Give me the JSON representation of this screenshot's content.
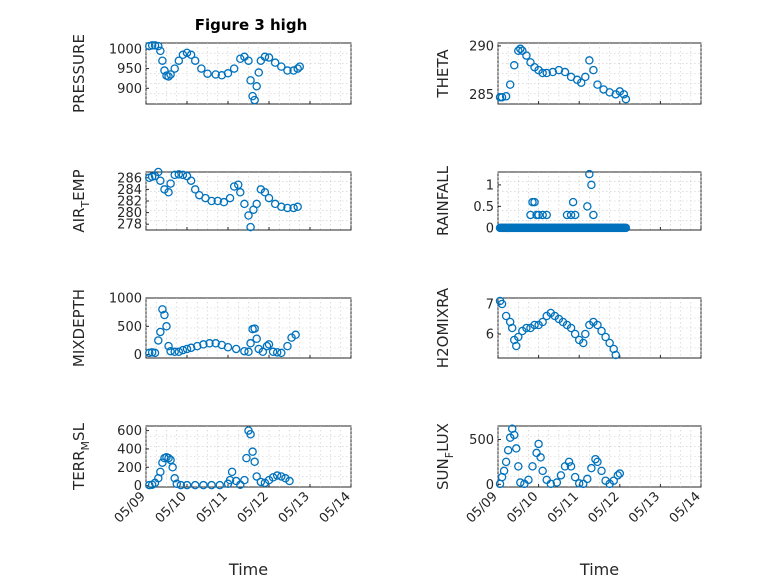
{
  "title": "Figure 3 high",
  "colors": {
    "marker": "#0072BD",
    "axis": "#262626"
  },
  "x_tick_labels": [
    "05/09",
    "05/10",
    "05/11",
    "05/12",
    "05/13",
    "05/14"
  ],
  "x_label": "Time",
  "chart_data": [
    {
      "type": "scatter",
      "id": "pressure",
      "ylabel": "PRESSURE",
      "ylim": [
        860,
        1015
      ],
      "yticks": [
        900,
        950,
        1000
      ],
      "x_domain": [
        0,
        5
      ],
      "grid": true,
      "points": [
        [
          0.08,
          1007
        ],
        [
          0.15,
          1009
        ],
        [
          0.22,
          1009
        ],
        [
          0.3,
          1007
        ],
        [
          0.35,
          995
        ],
        [
          0.4,
          970
        ],
        [
          0.45,
          945
        ],
        [
          0.5,
          932
        ],
        [
          0.55,
          930
        ],
        [
          0.6,
          935
        ],
        [
          0.7,
          950
        ],
        [
          0.8,
          970
        ],
        [
          0.9,
          985
        ],
        [
          1.0,
          990
        ],
        [
          1.1,
          985
        ],
        [
          1.2,
          970
        ],
        [
          1.35,
          950
        ],
        [
          1.5,
          937
        ],
        [
          1.7,
          935
        ],
        [
          1.85,
          933
        ],
        [
          2.0,
          938
        ],
        [
          2.15,
          950
        ],
        [
          2.3,
          975
        ],
        [
          2.4,
          980
        ],
        [
          2.5,
          970
        ],
        [
          2.55,
          920
        ],
        [
          2.6,
          880
        ],
        [
          2.65,
          870
        ],
        [
          2.7,
          905
        ],
        [
          2.75,
          940
        ],
        [
          2.8,
          970
        ],
        [
          2.9,
          980
        ],
        [
          3.0,
          978
        ],
        [
          3.15,
          965
        ],
        [
          3.3,
          955
        ],
        [
          3.45,
          945
        ],
        [
          3.6,
          945
        ],
        [
          3.7,
          950
        ],
        [
          3.75,
          955
        ]
      ]
    },
    {
      "type": "scatter",
      "id": "theta",
      "ylabel": "THETA",
      "ylim": [
        284,
        290.3
      ],
      "yticks": [
        285,
        290
      ],
      "x_domain": [
        0,
        5
      ],
      "grid": true,
      "points": [
        [
          0.05,
          284.7
        ],
        [
          0.1,
          284.7
        ],
        [
          0.2,
          284.8
        ],
        [
          0.3,
          286
        ],
        [
          0.4,
          288
        ],
        [
          0.5,
          289.5
        ],
        [
          0.55,
          289.7
        ],
        [
          0.6,
          289.5
        ],
        [
          0.7,
          289
        ],
        [
          0.8,
          288.3
        ],
        [
          0.9,
          287.8
        ],
        [
          1.0,
          287.5
        ],
        [
          1.1,
          287.2
        ],
        [
          1.2,
          287.2
        ],
        [
          1.35,
          287.3
        ],
        [
          1.5,
          287.5
        ],
        [
          1.65,
          287.3
        ],
        [
          1.8,
          286.8
        ],
        [
          1.95,
          286.5
        ],
        [
          2.05,
          286.2
        ],
        [
          2.15,
          286.8
        ],
        [
          2.25,
          288.5
        ],
        [
          2.35,
          287.5
        ],
        [
          2.45,
          286
        ],
        [
          2.6,
          285.5
        ],
        [
          2.75,
          285.2
        ],
        [
          2.9,
          285
        ],
        [
          3.0,
          285.3
        ],
        [
          3.1,
          285
        ],
        [
          3.15,
          284.5
        ]
      ]
    },
    {
      "type": "scatter",
      "id": "air_temp",
      "ylabel": "AIR_TEMP",
      "ylim": [
        277,
        287
      ],
      "yticks": [
        278,
        280,
        282,
        284,
        286
      ],
      "x_domain": [
        0,
        5
      ],
      "grid": true,
      "points": [
        [
          0.08,
          286
        ],
        [
          0.15,
          286.2
        ],
        [
          0.22,
          286.3
        ],
        [
          0.3,
          287
        ],
        [
          0.35,
          285.5
        ],
        [
          0.45,
          284
        ],
        [
          0.55,
          283.5
        ],
        [
          0.6,
          285
        ],
        [
          0.7,
          286.5
        ],
        [
          0.8,
          286.6
        ],
        [
          0.9,
          286.5
        ],
        [
          1.0,
          286.3
        ],
        [
          1.1,
          285.5
        ],
        [
          1.2,
          284
        ],
        [
          1.3,
          283
        ],
        [
          1.45,
          282.5
        ],
        [
          1.6,
          282
        ],
        [
          1.75,
          282
        ],
        [
          1.9,
          281.8
        ],
        [
          2.05,
          282.5
        ],
        [
          2.15,
          284.5
        ],
        [
          2.25,
          284.8
        ],
        [
          2.3,
          283.5
        ],
        [
          2.4,
          281.5
        ],
        [
          2.5,
          279.5
        ],
        [
          2.55,
          277.5
        ],
        [
          2.62,
          280.5
        ],
        [
          2.7,
          281.5
        ],
        [
          2.8,
          284
        ],
        [
          2.9,
          283.5
        ],
        [
          3.0,
          282.5
        ],
        [
          3.15,
          281.5
        ],
        [
          3.3,
          281
        ],
        [
          3.45,
          280.8
        ],
        [
          3.6,
          280.8
        ],
        [
          3.7,
          281
        ]
      ]
    },
    {
      "type": "scatter",
      "id": "rainfall",
      "ylabel": "RAINFALL",
      "ylim": [
        -0.05,
        1.3
      ],
      "yticks": [
        0,
        0.5,
        1
      ],
      "x_domain": [
        0,
        5
      ],
      "grid": true,
      "zero_run": [
        0.05,
        3.15,
        0.025
      ],
      "points": [
        [
          0.8,
          0.3
        ],
        [
          0.85,
          0.6
        ],
        [
          0.9,
          0.6
        ],
        [
          0.95,
          0.3
        ],
        [
          1.0,
          0.3
        ],
        [
          1.1,
          0.3
        ],
        [
          1.2,
          0.3
        ],
        [
          1.7,
          0.3
        ],
        [
          1.8,
          0.3
        ],
        [
          1.85,
          0.6
        ],
        [
          1.9,
          0.3
        ],
        [
          2.2,
          0.5
        ],
        [
          2.25,
          1.25
        ],
        [
          2.3,
          1.0
        ],
        [
          2.35,
          0.3
        ]
      ]
    },
    {
      "type": "scatter",
      "id": "mixdepth",
      "ylabel": "MIXDEPTH",
      "ylim": [
        -60,
        1000
      ],
      "yticks": [
        0,
        500,
        1000
      ],
      "x_domain": [
        0,
        5
      ],
      "grid": true,
      "points": [
        [
          0.08,
          30
        ],
        [
          0.15,
          40
        ],
        [
          0.22,
          30
        ],
        [
          0.3,
          250
        ],
        [
          0.35,
          400
        ],
        [
          0.4,
          800
        ],
        [
          0.45,
          700
        ],
        [
          0.5,
          500
        ],
        [
          0.55,
          150
        ],
        [
          0.6,
          60
        ],
        [
          0.7,
          50
        ],
        [
          0.8,
          50
        ],
        [
          0.9,
          80
        ],
        [
          1.0,
          100
        ],
        [
          1.1,
          120
        ],
        [
          1.25,
          150
        ],
        [
          1.4,
          180
        ],
        [
          1.55,
          200
        ],
        [
          1.7,
          200
        ],
        [
          1.85,
          170
        ],
        [
          2.0,
          130
        ],
        [
          2.2,
          100
        ],
        [
          2.4,
          60
        ],
        [
          2.5,
          50
        ],
        [
          2.55,
          200
        ],
        [
          2.6,
          450
        ],
        [
          2.65,
          460
        ],
        [
          2.7,
          280
        ],
        [
          2.75,
          100
        ],
        [
          2.85,
          50
        ],
        [
          2.95,
          150
        ],
        [
          3.0,
          180
        ],
        [
          3.1,
          50
        ],
        [
          3.2,
          40
        ],
        [
          3.3,
          30
        ],
        [
          3.45,
          150
        ],
        [
          3.55,
          300
        ],
        [
          3.65,
          350
        ]
      ]
    },
    {
      "type": "scatter",
      "id": "h2omixra",
      "ylabel": "H2OMIXRA",
      "ylim": [
        5.2,
        7.2
      ],
      "yticks": [
        6,
        7
      ],
      "x_domain": [
        0,
        5
      ],
      "grid": true,
      "points": [
        [
          0.05,
          7.1
        ],
        [
          0.1,
          7.0
        ],
        [
          0.2,
          6.6
        ],
        [
          0.3,
          6.4
        ],
        [
          0.35,
          6.2
        ],
        [
          0.4,
          5.8
        ],
        [
          0.45,
          5.6
        ],
        [
          0.5,
          5.9
        ],
        [
          0.6,
          6.1
        ],
        [
          0.7,
          6.2
        ],
        [
          0.8,
          6.2
        ],
        [
          0.9,
          6.3
        ],
        [
          1.0,
          6.3
        ],
        [
          1.1,
          6.4
        ],
        [
          1.2,
          6.6
        ],
        [
          1.3,
          6.7
        ],
        [
          1.4,
          6.6
        ],
        [
          1.5,
          6.5
        ],
        [
          1.6,
          6.4
        ],
        [
          1.7,
          6.3
        ],
        [
          1.8,
          6.2
        ],
        [
          1.9,
          6.0
        ],
        [
          2.0,
          5.8
        ],
        [
          2.1,
          5.7
        ],
        [
          2.15,
          6.0
        ],
        [
          2.25,
          6.3
        ],
        [
          2.35,
          6.4
        ],
        [
          2.45,
          6.3
        ],
        [
          2.55,
          6.1
        ],
        [
          2.65,
          5.9
        ],
        [
          2.75,
          5.7
        ],
        [
          2.85,
          5.5
        ],
        [
          2.9,
          5.3
        ]
      ]
    },
    {
      "type": "scatter",
      "id": "terr_msl",
      "ylabel": "TERR_MSL",
      "ylim": [
        -15,
        650
      ],
      "yticks": [
        0,
        200,
        400,
        600
      ],
      "x_domain": [
        0,
        5
      ],
      "grid": true,
      "points": [
        [
          0.08,
          5
        ],
        [
          0.15,
          10
        ],
        [
          0.22,
          30
        ],
        [
          0.3,
          80
        ],
        [
          0.35,
          150
        ],
        [
          0.4,
          250
        ],
        [
          0.45,
          300
        ],
        [
          0.5,
          310
        ],
        [
          0.55,
          300
        ],
        [
          0.6,
          280
        ],
        [
          0.65,
          200
        ],
        [
          0.7,
          80
        ],
        [
          0.75,
          20
        ],
        [
          0.85,
          5
        ],
        [
          1.0,
          5
        ],
        [
          1.2,
          5
        ],
        [
          1.4,
          5
        ],
        [
          1.6,
          5
        ],
        [
          1.8,
          5
        ],
        [
          2.0,
          20
        ],
        [
          2.05,
          60
        ],
        [
          2.1,
          150
        ],
        [
          2.2,
          50
        ],
        [
          2.3,
          10
        ],
        [
          2.4,
          60
        ],
        [
          2.45,
          300
        ],
        [
          2.5,
          600
        ],
        [
          2.55,
          560
        ],
        [
          2.6,
          370
        ],
        [
          2.65,
          260
        ],
        [
          2.7,
          100
        ],
        [
          2.8,
          40
        ],
        [
          2.9,
          30
        ],
        [
          3.0,
          60
        ],
        [
          3.1,
          90
        ],
        [
          3.2,
          110
        ],
        [
          3.3,
          100
        ],
        [
          3.4,
          80
        ],
        [
          3.5,
          50
        ]
      ]
    },
    {
      "type": "scatter",
      "id": "sun_flux",
      "ylabel": "SUN_FLUX",
      "ylim": [
        -30,
        650
      ],
      "yticks": [
        0,
        500
      ],
      "x_domain": [
        0,
        5
      ],
      "grid": true,
      "points": [
        [
          0.05,
          5
        ],
        [
          0.1,
          80
        ],
        [
          0.15,
          150
        ],
        [
          0.2,
          250
        ],
        [
          0.25,
          380
        ],
        [
          0.3,
          520
        ],
        [
          0.35,
          620
        ],
        [
          0.4,
          550
        ],
        [
          0.45,
          400
        ],
        [
          0.5,
          200
        ],
        [
          0.55,
          20
        ],
        [
          0.65,
          5
        ],
        [
          0.75,
          50
        ],
        [
          0.85,
          200
        ],
        [
          0.95,
          350
        ],
        [
          1.0,
          450
        ],
        [
          1.05,
          300
        ],
        [
          1.1,
          150
        ],
        [
          1.2,
          50
        ],
        [
          1.3,
          5
        ],
        [
          1.45,
          20
        ],
        [
          1.55,
          100
        ],
        [
          1.65,
          200
        ],
        [
          1.75,
          250
        ],
        [
          1.8,
          200
        ],
        [
          1.9,
          80
        ],
        [
          2.0,
          10
        ],
        [
          2.1,
          5
        ],
        [
          2.2,
          60
        ],
        [
          2.3,
          180
        ],
        [
          2.4,
          280
        ],
        [
          2.45,
          250
        ],
        [
          2.55,
          150
        ],
        [
          2.65,
          40
        ],
        [
          2.75,
          5
        ],
        [
          2.85,
          40
        ],
        [
          2.95,
          100
        ],
        [
          3.0,
          120
        ]
      ]
    }
  ]
}
